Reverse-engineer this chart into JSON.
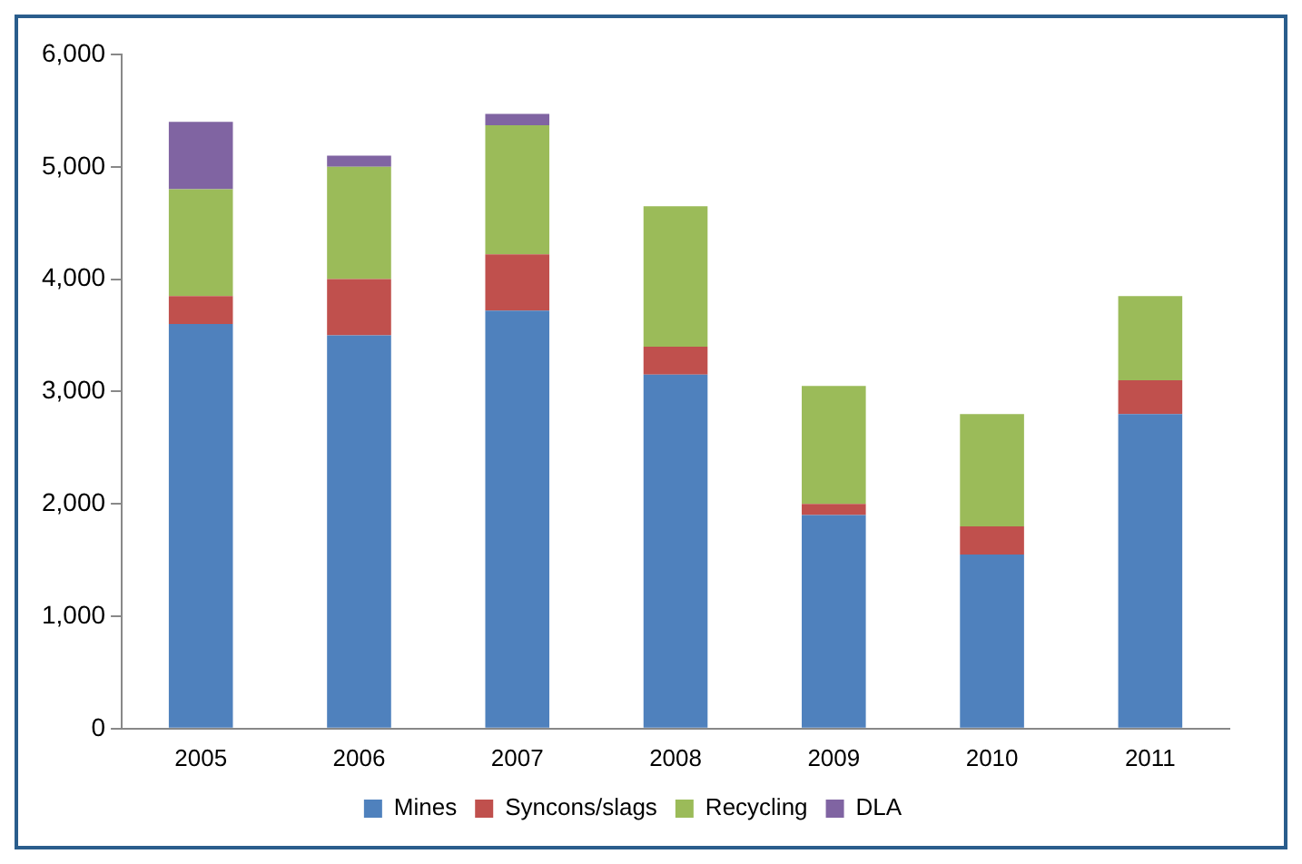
{
  "chart_data": {
    "type": "bar",
    "stacked": true,
    "categories": [
      "2005",
      "2006",
      "2007",
      "2008",
      "2009",
      "2010",
      "2011"
    ],
    "series": [
      {
        "name": "Mines",
        "color": "#4f81bd",
        "values": [
          3600,
          3500,
          3720,
          3150,
          1900,
          1550,
          2800
        ]
      },
      {
        "name": "Syncons/slags",
        "color": "#c0504d",
        "values": [
          250,
          500,
          500,
          250,
          100,
          250,
          300
        ]
      },
      {
        "name": "Recycling",
        "color": "#9bbb59",
        "values": [
          950,
          1000,
          1150,
          1250,
          1050,
          1000,
          750
        ]
      },
      {
        "name": "DLA",
        "color": "#8064a2",
        "values": [
          600,
          100,
          100,
          null,
          null,
          null,
          null
        ]
      }
    ],
    "ylim": [
      0,
      6000
    ],
    "yticks": [
      {
        "value": 0,
        "label": "0"
      },
      {
        "value": 1000,
        "label": "1,000"
      },
      {
        "value": 2000,
        "label": "2,000"
      },
      {
        "value": 3000,
        "label": "3,000"
      },
      {
        "value": 4000,
        "label": "4,000"
      },
      {
        "value": 5000,
        "label": "5,000"
      },
      {
        "value": 6000,
        "label": "6,000"
      }
    ],
    "grid": false,
    "legend": "bottom"
  }
}
